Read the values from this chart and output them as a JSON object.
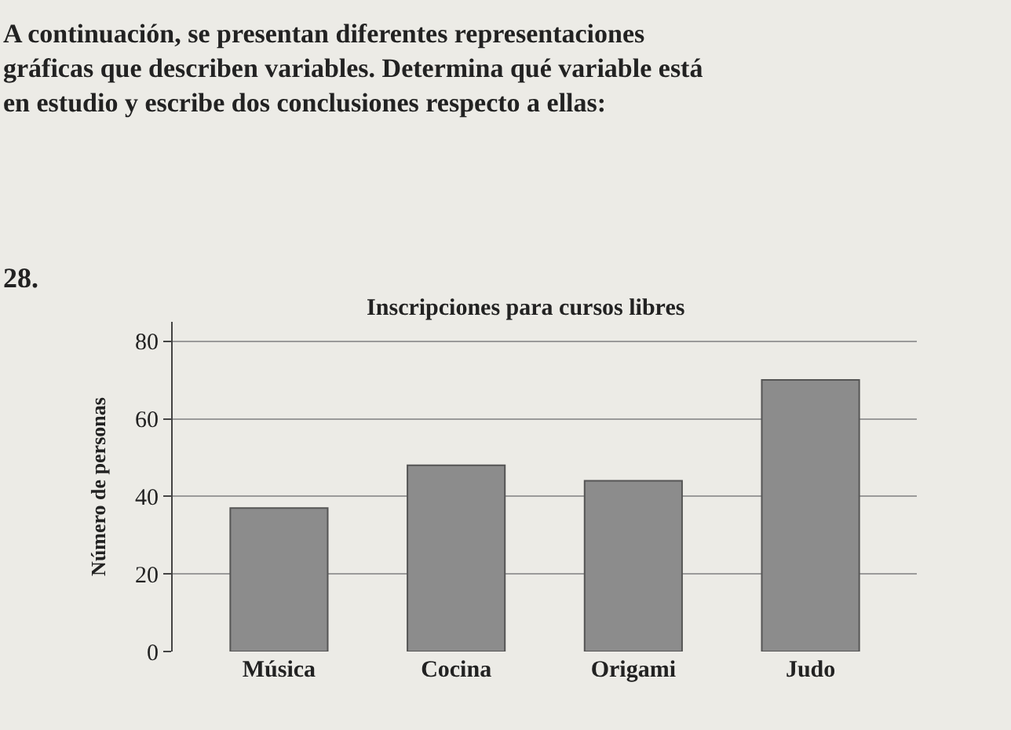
{
  "chart_data": {
    "type": "bar",
    "title": "Inscripciones para cursos libres",
    "ylabel": "Número de personas",
    "categories": [
      "Música",
      "Cocina",
      "Origami",
      "Judo"
    ],
    "values": [
      37,
      48,
      44,
      70
    ],
    "color": "#8c8c8c",
    "ylim": [
      0,
      85
    ],
    "yticks": [
      0,
      20,
      40,
      60,
      80
    ],
    "grid": "y",
    "annotations": [
      "A continuación, se presentan diferentes representaciones gráficas que describen variables. Determina qué variable está en estudio y escribe dos conclusiones respecto a ellas:",
      "28."
    ]
  }
}
